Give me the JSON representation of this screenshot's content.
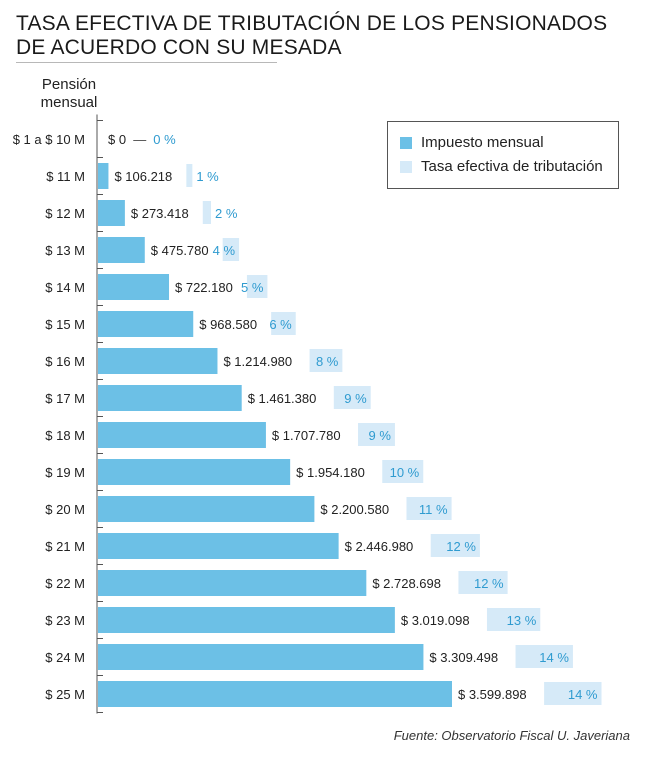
{
  "header": {
    "title_line1": "TASA EFECTIVA DE TRIBUTACIÓN DE LOS PENSIONADOS",
    "title_line2": "DE ACUERDO CON SU MESADA"
  },
  "colors": {
    "tax_bar": "#6cc0e6",
    "rate_bar": "#d6eaf8",
    "rate_text": "#2f9bd0",
    "axis": "#555555"
  },
  "legend": {
    "position": "top-right",
    "items": [
      {
        "label": "Impuesto mensual",
        "color": "#6cc0e6"
      },
      {
        "label": "Tasa efectiva de tributación",
        "color": "#d6eaf8"
      }
    ]
  },
  "source": "Fuente: Observatorio Fiscal U. Javeriana",
  "chart_data": {
    "type": "bar",
    "orientation": "horizontal",
    "title": "TASA EFECTIVA DE TRIBUTACIÓN DE LOS PENSIONADOS DE ACUERDO CON SU MESADA",
    "ylabel": "Pensión mensual",
    "xlabel": "",
    "grid": false,
    "legend_position": "top-right",
    "categories": [
      "$ 1 a $ 10 M",
      "$ 11 M",
      "$ 12 M",
      "$ 13 M",
      "$ 14 M",
      "$ 15 M",
      "$ 16 M",
      "$ 17 M",
      "$ 18 M",
      "$ 19 M",
      "$ 20 M",
      "$ 21 M",
      "$ 22 M",
      "$ 23 M",
      "$ 24 M",
      "$ 25 M"
    ],
    "series": [
      {
        "name": "Impuesto mensual",
        "values": [
          0,
          106218,
          273418,
          475780,
          722180,
          968580,
          1214980,
          1461380,
          1707780,
          1954180,
          2200580,
          2446980,
          2728698,
          3019098,
          3309498,
          3599898
        ],
        "labels": [
          "$ 0",
          "$ 106.218",
          "$ 273.418",
          "$ 475.780",
          "$ 722.180",
          "$ 968.580",
          "$ 1.214.980",
          "$ 1.461.380",
          "$ 1.707.780",
          "$ 1.954.180",
          "$ 2.200.580",
          "$ 2.446.980",
          "$ 2.728.698",
          "$ 3.019.098",
          "$ 3.309.498",
          "$ 3.599.898"
        ]
      },
      {
        "name": "Tasa efectiva de tributación",
        "unit": "%",
        "values": [
          0,
          1,
          2,
          4,
          5,
          6,
          8,
          9,
          9,
          10,
          11,
          12,
          12,
          13,
          14,
          14
        ],
        "labels": [
          "0 %",
          "1 %",
          "2 %",
          "4 %",
          "5 %",
          "6 %",
          "8 %",
          "9 %",
          "9 %",
          "10 %",
          "11 %",
          "12 %",
          "12 %",
          "13 %",
          "14 %",
          "14 %"
        ]
      }
    ],
    "zero_row_separator": "—",
    "xlim": [
      0,
      3600000
    ]
  }
}
